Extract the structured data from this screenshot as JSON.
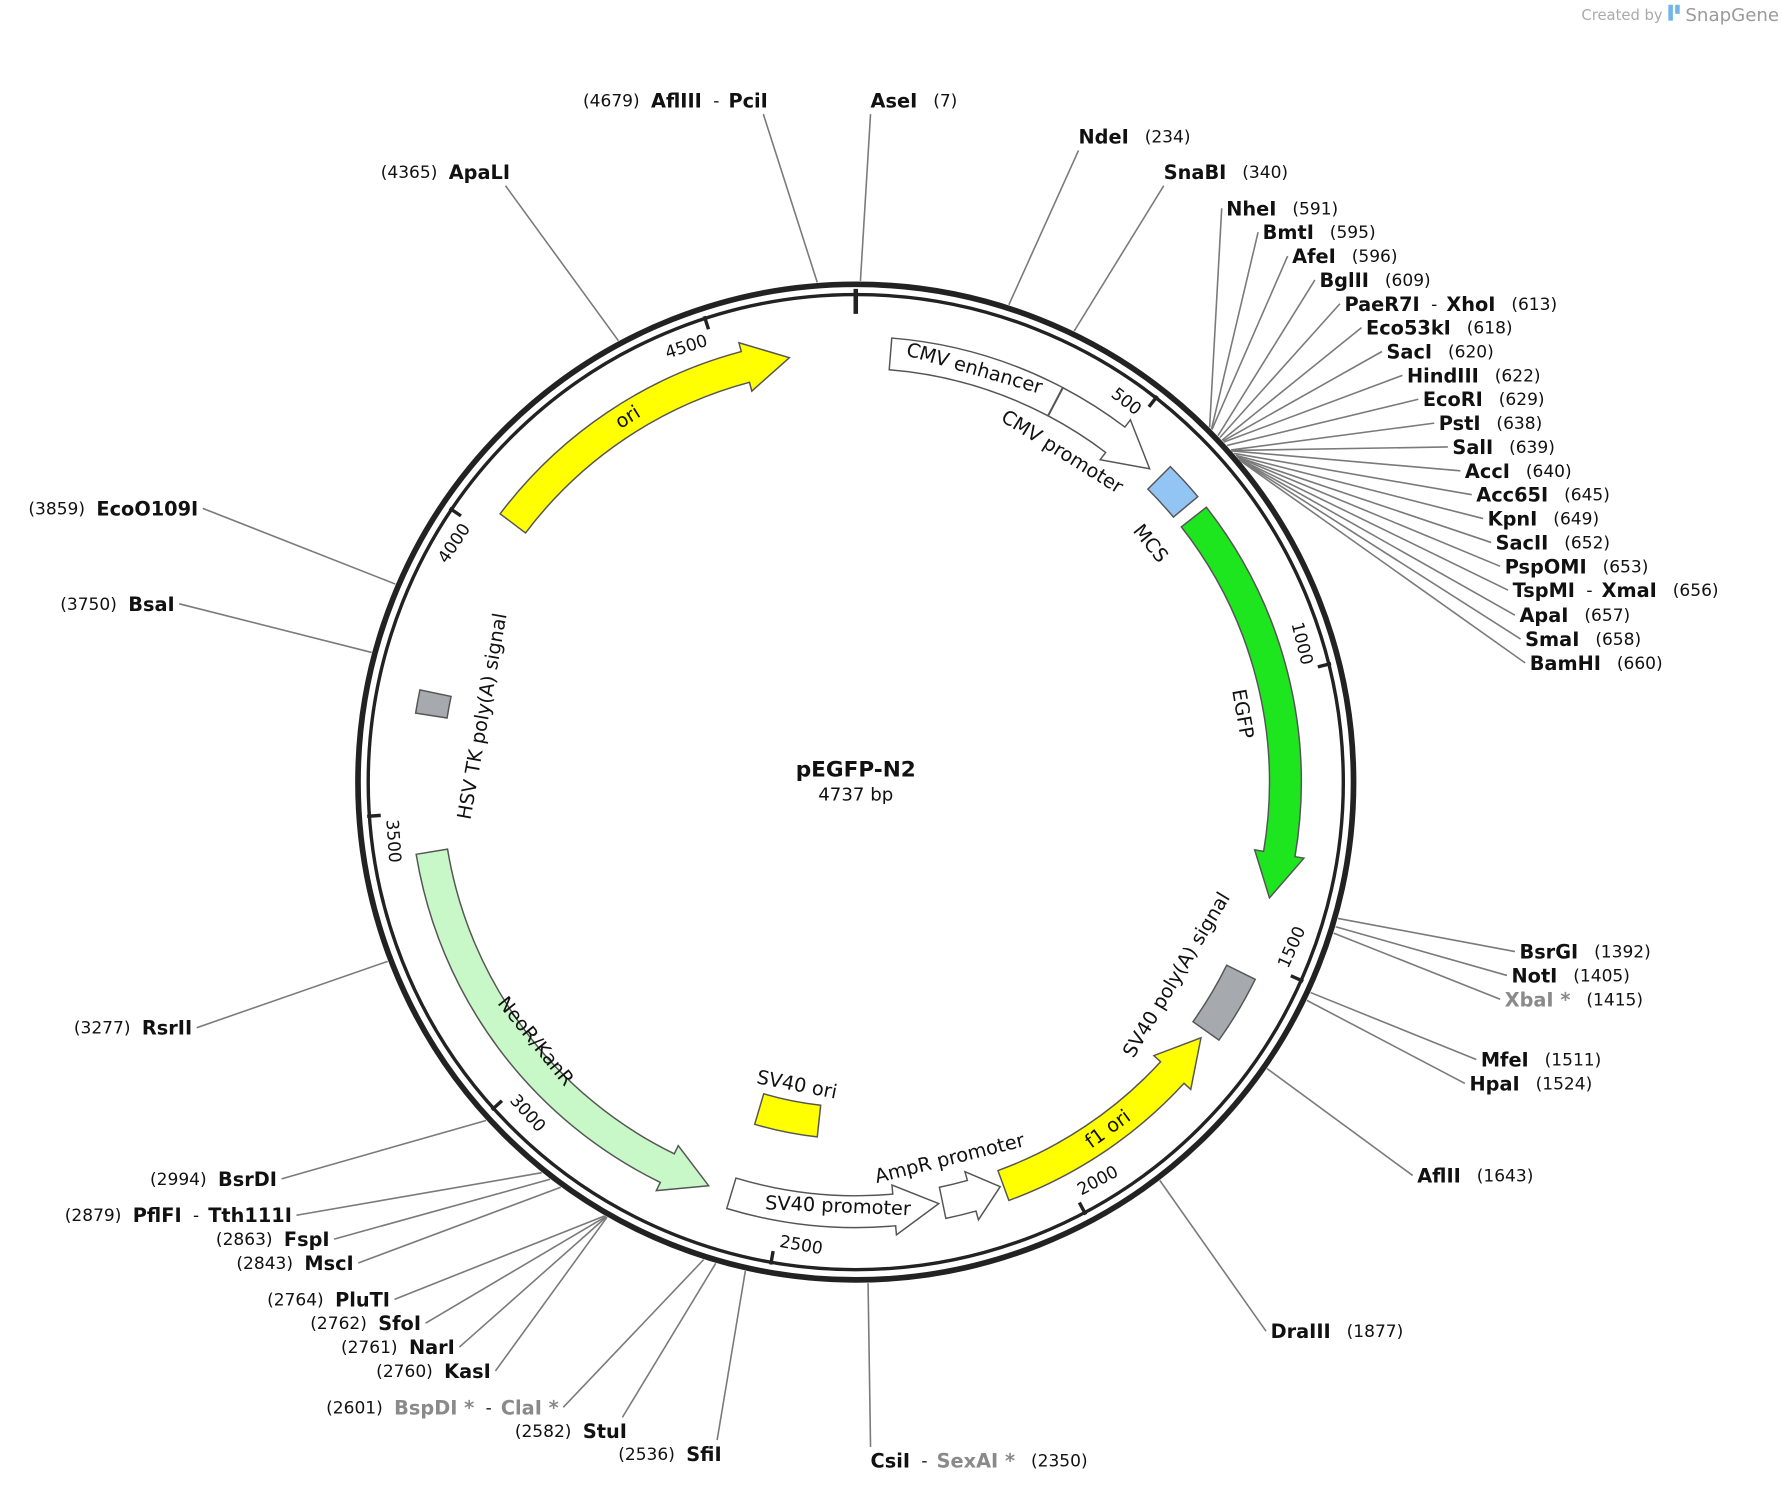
{
  "watermark": {
    "prefix": "Created by",
    "brand": "SnapGene"
  },
  "title": "pEGFP-N2",
  "length": 4737,
  "length_label": "4737 bp",
  "separator": "-",
  "ticks": [
    500,
    1000,
    1500,
    2000,
    2500,
    3000,
    3500,
    4000,
    4500
  ],
  "features": [
    {
      "name": "CMV enhancer",
      "start": 61,
      "end": 364,
      "direction": "none",
      "color": "#ffffff"
    },
    {
      "name": "CMV promoter",
      "start": 365,
      "end": 568,
      "direction": "forward",
      "color": "#ffffff"
    },
    {
      "name": "MCS",
      "start": 591,
      "end": 660,
      "direction": "none",
      "color": "#92c5f4"
    },
    {
      "name": "EGFP",
      "start": 683,
      "end": 1390,
      "direction": "forward",
      "color": "#1ee61e"
    },
    {
      "name": "SV40 poly(A) signal",
      "start": 1530,
      "end": 1650,
      "direction": "none",
      "color": "#a6a9ae"
    },
    {
      "name": "f1 ori",
      "start": 1665,
      "end": 2104,
      "direction": "reverse",
      "color": "#ffff00"
    },
    {
      "name": "AmpR promoter",
      "start": 2110,
      "end": 2215,
      "direction": "reverse",
      "color": "#ffffff"
    },
    {
      "name": "SV40 promoter",
      "start": 2222,
      "end": 2590,
      "direction": "reverse",
      "color": "#ffffff"
    },
    {
      "name": "SV40 ori",
      "start": 2450,
      "end": 2585,
      "direction": "none",
      "color": "#ffff00"
    },
    {
      "name": "NeoR/KanR",
      "start": 2632,
      "end": 3430,
      "direction": "reverse",
      "color": "#c8f7c8"
    },
    {
      "name": "HSV TK poly(A) signal",
      "start": 3670,
      "end": 3710,
      "direction": "none",
      "color": "#a6a9ae"
    },
    {
      "name": "ori",
      "start": 4040,
      "end": 4620,
      "direction": "forward",
      "color": "#ffff00"
    }
  ],
  "sites": [
    {
      "names": [
        "AflIII",
        "PciI"
      ],
      "dim": [
        false,
        false
      ],
      "position": 4679,
      "position_label": "(4679)"
    },
    {
      "names": [
        "AseI"
      ],
      "dim": [
        false
      ],
      "position": 7,
      "position_label": "(7)"
    },
    {
      "names": [
        "NdeI"
      ],
      "dim": [
        false
      ],
      "position": 234,
      "position_label": "(234)"
    },
    {
      "names": [
        "SnaBI"
      ],
      "dim": [
        false
      ],
      "position": 340,
      "position_label": "(340)"
    },
    {
      "names": [
        "NheI"
      ],
      "dim": [
        false
      ],
      "position": 591,
      "position_label": "(591)"
    },
    {
      "names": [
        "BmtI"
      ],
      "dim": [
        false
      ],
      "position": 595,
      "position_label": "(595)"
    },
    {
      "names": [
        "AfeI"
      ],
      "dim": [
        false
      ],
      "position": 596,
      "position_label": "(596)"
    },
    {
      "names": [
        "BglII"
      ],
      "dim": [
        false
      ],
      "position": 609,
      "position_label": "(609)"
    },
    {
      "names": [
        "PaeR7I",
        "XhoI"
      ],
      "dim": [
        false,
        false
      ],
      "position": 613,
      "position_label": "(613)"
    },
    {
      "names": [
        "Eco53kI"
      ],
      "dim": [
        false
      ],
      "position": 618,
      "position_label": "(618)"
    },
    {
      "names": [
        "SacI"
      ],
      "dim": [
        false
      ],
      "position": 620,
      "position_label": "(620)"
    },
    {
      "names": [
        "HindIII"
      ],
      "dim": [
        false
      ],
      "position": 622,
      "position_label": "(622)"
    },
    {
      "names": [
        "EcoRI"
      ],
      "dim": [
        false
      ],
      "position": 629,
      "position_label": "(629)"
    },
    {
      "names": [
        "PstI"
      ],
      "dim": [
        false
      ],
      "position": 638,
      "position_label": "(638)"
    },
    {
      "names": [
        "SalI"
      ],
      "dim": [
        false
      ],
      "position": 639,
      "position_label": "(639)"
    },
    {
      "names": [
        "AccI"
      ],
      "dim": [
        false
      ],
      "position": 640,
      "position_label": "(640)"
    },
    {
      "names": [
        "Acc65I"
      ],
      "dim": [
        false
      ],
      "position": 645,
      "position_label": "(645)"
    },
    {
      "names": [
        "KpnI"
      ],
      "dim": [
        false
      ],
      "position": 649,
      "position_label": "(649)"
    },
    {
      "names": [
        "SacII"
      ],
      "dim": [
        false
      ],
      "position": 652,
      "position_label": "(652)"
    },
    {
      "names": [
        "PspOMI"
      ],
      "dim": [
        false
      ],
      "position": 653,
      "position_label": "(653)"
    },
    {
      "names": [
        "TspMI",
        "XmaI"
      ],
      "dim": [
        false,
        false
      ],
      "position": 656,
      "position_label": "(656)"
    },
    {
      "names": [
        "ApaI"
      ],
      "dim": [
        false
      ],
      "position": 657,
      "position_label": "(657)"
    },
    {
      "names": [
        "SmaI"
      ],
      "dim": [
        false
      ],
      "position": 658,
      "position_label": "(658)"
    },
    {
      "names": [
        "BamHI"
      ],
      "dim": [
        false
      ],
      "position": 660,
      "position_label": "(660)"
    },
    {
      "names": [
        "BsrGI"
      ],
      "dim": [
        false
      ],
      "position": 1392,
      "position_label": "(1392)"
    },
    {
      "names": [
        "NotI"
      ],
      "dim": [
        false
      ],
      "position": 1405,
      "position_label": "(1405)"
    },
    {
      "names": [
        "XbaI *"
      ],
      "dim": [
        true
      ],
      "position": 1415,
      "position_label": "(1415)"
    },
    {
      "names": [
        "MfeI"
      ],
      "dim": [
        false
      ],
      "position": 1511,
      "position_label": "(1511)"
    },
    {
      "names": [
        "HpaI"
      ],
      "dim": [
        false
      ],
      "position": 1524,
      "position_label": "(1524)"
    },
    {
      "names": [
        "AflII"
      ],
      "dim": [
        false
      ],
      "position": 1643,
      "position_label": "(1643)"
    },
    {
      "names": [
        "DraIII"
      ],
      "dim": [
        false
      ],
      "position": 1877,
      "position_label": "(1877)"
    },
    {
      "names": [
        "CsiI",
        "SexAI *"
      ],
      "dim": [
        false,
        true
      ],
      "position": 2350,
      "position_label": "(2350)"
    },
    {
      "names": [
        "SfiI"
      ],
      "dim": [
        false
      ],
      "position": 2536,
      "position_label": "(2536)"
    },
    {
      "names": [
        "StuI"
      ],
      "dim": [
        false
      ],
      "position": 2582,
      "position_label": "(2582)"
    },
    {
      "names": [
        "BspDI *",
        "ClaI *"
      ],
      "dim": [
        true,
        true
      ],
      "position": 2601,
      "position_label": "(2601)"
    },
    {
      "names": [
        "KasI"
      ],
      "dim": [
        false
      ],
      "position": 2760,
      "position_label": "(2760)"
    },
    {
      "names": [
        "NarI"
      ],
      "dim": [
        false
      ],
      "position": 2761,
      "position_label": "(2761)"
    },
    {
      "names": [
        "SfoI"
      ],
      "dim": [
        false
      ],
      "position": 2762,
      "position_label": "(2762)"
    },
    {
      "names": [
        "PluTI"
      ],
      "dim": [
        false
      ],
      "position": 2764,
      "position_label": "(2764)"
    },
    {
      "names": [
        "MscI"
      ],
      "dim": [
        false
      ],
      "position": 2843,
      "position_label": "(2843)"
    },
    {
      "names": [
        "FspI"
      ],
      "dim": [
        false
      ],
      "position": 2863,
      "position_label": "(2863)"
    },
    {
      "names": [
        "PflFI",
        "Tth111I"
      ],
      "dim": [
        false,
        false
      ],
      "position": 2879,
      "position_label": "(2879)"
    },
    {
      "names": [
        "BsrDI"
      ],
      "dim": [
        false
      ],
      "position": 2994,
      "position_label": "(2994)"
    },
    {
      "names": [
        "RsrII"
      ],
      "dim": [
        false
      ],
      "position": 3277,
      "position_label": "(3277)"
    },
    {
      "names": [
        "BsaI"
      ],
      "dim": [
        false
      ],
      "position": 3750,
      "position_label": "(3750)"
    },
    {
      "names": [
        "EcoO109I"
      ],
      "dim": [
        false
      ],
      "position": 3859,
      "position_label": "(3859)"
    },
    {
      "names": [
        "ApaLI"
      ],
      "dim": [
        false
      ],
      "position": 4365,
      "position_label": "(4365)"
    }
  ]
}
